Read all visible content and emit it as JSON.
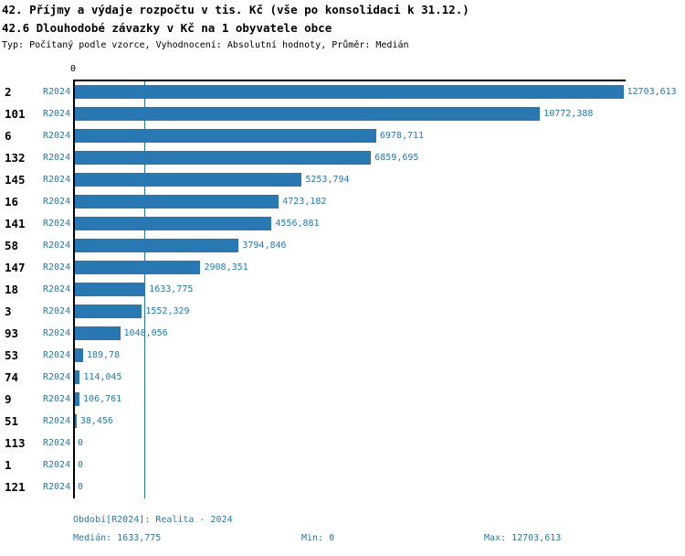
{
  "header": {
    "title1": "42. Příjmy a výdaje rozpočtu v tis. Kč (vše po konsolidaci k 31.12.)",
    "title2": "42.6 Dlouhodobé závazky v Kč na 1 obyvatele obce",
    "subtitle": "Typ: Počítaný podle vzorce, Vyhodnocení: Absolutní hodnoty, Průměr: Medián"
  },
  "chart_data": {
    "type": "bar",
    "orientation": "horizontal",
    "axis_tick_label": "0",
    "period_label": "R2024",
    "categories": [
      "2",
      "101",
      "6",
      "132",
      "145",
      "16",
      "141",
      "58",
      "147",
      "18",
      "3",
      "93",
      "53",
      "74",
      "9",
      "51",
      "113",
      "1",
      "121"
    ],
    "values": [
      12703.613,
      10772.388,
      6978.711,
      6859.695,
      5253.794,
      4723.182,
      4556.881,
      3794.846,
      2908.351,
      1633.775,
      1552.329,
      1048.056,
      189.78,
      114.045,
      106.761,
      38.456,
      0,
      0,
      0
    ],
    "value_labels": [
      "12703,613",
      "10772,388",
      "6978,711",
      "6859,695",
      "5253,794",
      "4723,182",
      "4556,881",
      "3794,846",
      "2908,351",
      "1633,775",
      "1552,329",
      "1048,056",
      "189,78",
      "114,045",
      "106,761",
      "38,456",
      "0",
      "0",
      "0"
    ],
    "xlim": [
      0,
      12703.613
    ],
    "median_line_value": 1633.775,
    "grid": "median-line-only",
    "legend": "none",
    "bar_color": "#2878b4",
    "label_color": "#2878b4",
    "axis_color": "#000000"
  },
  "footer": {
    "period_info": "Období[R2024]: Realita - 2024",
    "median": "Medián: 1633,775",
    "min": "Min: 0",
    "max": "Max: 12703,613"
  }
}
